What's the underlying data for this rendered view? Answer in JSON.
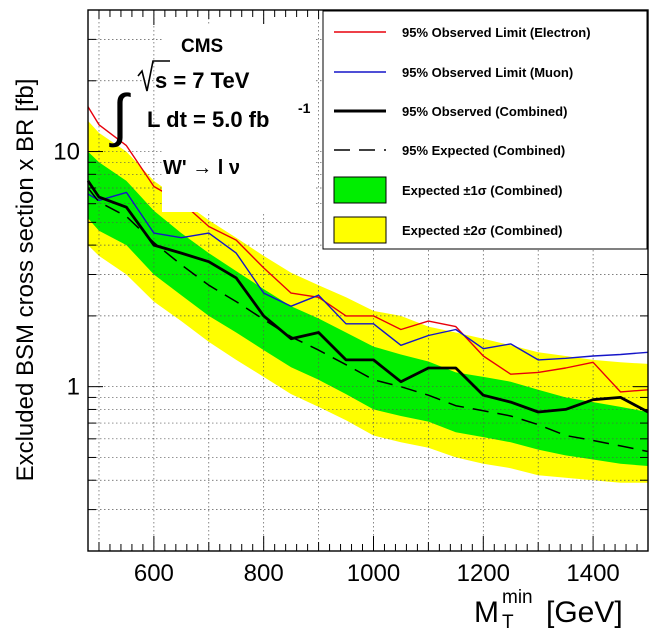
{
  "chart_data": {
    "type": "line",
    "xlabel": "M",
    "xlabel_sup": "min",
    "xlabel_sub": "T",
    "xlabel_unit": "[GeV]",
    "ylabel": "Excluded BSM cross section x BR [fb]",
    "xlim": [
      480,
      1500
    ],
    "ylim": [
      0.2,
      40
    ],
    "yscale": "log",
    "grid": true,
    "legend_position": "top-right",
    "x_ticks": [
      600,
      800,
      1000,
      1200,
      1400
    ],
    "y_ticks": [
      1,
      10
    ],
    "x": [
      480,
      500,
      550,
      600,
      650,
      700,
      750,
      800,
      850,
      900,
      950,
      1000,
      1050,
      1100,
      1150,
      1200,
      1250,
      1300,
      1350,
      1400,
      1450,
      1500
    ],
    "series": [
      {
        "name": "95% Observed Limit (Electron)",
        "style": "line",
        "color": "#e8000b",
        "values": [
          15.5,
          13.0,
          10.6,
          7.1,
          6.1,
          4.8,
          4.2,
          3.2,
          2.5,
          2.4,
          2.0,
          2.0,
          1.75,
          1.9,
          1.8,
          1.35,
          1.13,
          1.15,
          1.2,
          1.27,
          0.95,
          0.97
        ]
      },
      {
        "name": "95% Observed Limit (Muon)",
        "style": "line",
        "color": "#1515c8",
        "values": [
          6.6,
          6.2,
          6.7,
          4.5,
          4.3,
          4.5,
          3.7,
          2.5,
          2.2,
          2.45,
          1.85,
          1.85,
          1.5,
          1.65,
          1.75,
          1.45,
          1.52,
          1.3,
          1.32,
          1.35,
          1.37,
          1.4
        ]
      },
      {
        "name": "95% Observed (Combined)",
        "style": "line-thick",
        "color": "#000000",
        "values": [
          7.5,
          6.4,
          5.8,
          4.0,
          3.7,
          3.4,
          2.9,
          2.0,
          1.6,
          1.7,
          1.3,
          1.3,
          1.05,
          1.2,
          1.2,
          0.92,
          0.86,
          0.78,
          0.8,
          0.88,
          0.9,
          0.78
        ]
      },
      {
        "name": "95% Expected (Combined)",
        "style": "dashed",
        "color": "#000000",
        "values": [
          7.0,
          6.1,
          5.3,
          4.1,
          3.3,
          2.7,
          2.3,
          1.93,
          1.63,
          1.43,
          1.24,
          1.07,
          1.0,
          0.92,
          0.83,
          0.79,
          0.75,
          0.69,
          0.62,
          0.59,
          0.56,
          0.53
        ]
      }
    ],
    "bands": [
      {
        "name": "Expected ±2σ (Combined)",
        "color": "#ffff00",
        "lower": [
          4.0,
          3.6,
          3.0,
          2.3,
          1.9,
          1.55,
          1.3,
          1.1,
          0.93,
          0.82,
          0.72,
          0.62,
          0.58,
          0.55,
          0.5,
          0.47,
          0.45,
          0.42,
          0.41,
          0.4,
          0.39,
          0.39
        ],
        "upper": [
          13.5,
          12.0,
          10.0,
          7.5,
          6.2,
          5.1,
          4.3,
          3.6,
          3.05,
          2.7,
          2.4,
          2.1,
          2.0,
          1.8,
          1.7,
          1.6,
          1.5,
          1.4,
          1.35,
          1.3,
          1.27,
          1.25
        ]
      },
      {
        "name": "Expected ±1σ (Combined)",
        "color": "#00ee00",
        "lower": [
          5.2,
          4.6,
          4.0,
          3.0,
          2.45,
          2.0,
          1.7,
          1.43,
          1.21,
          1.07,
          0.93,
          0.8,
          0.75,
          0.71,
          0.64,
          0.61,
          0.58,
          0.54,
          0.51,
          0.49,
          0.47,
          0.46
        ],
        "upper": [
          10.0,
          9.0,
          7.5,
          5.6,
          4.5,
          3.7,
          3.1,
          2.6,
          2.2,
          1.95,
          1.7,
          1.48,
          1.37,
          1.28,
          1.15,
          1.1,
          1.05,
          0.97,
          0.9,
          0.86,
          0.82,
          0.78
        ]
      }
    ],
    "legend": [
      {
        "label": "95% Observed Limit (Electron)",
        "kind": "line",
        "color": "#e8000b"
      },
      {
        "label": "95% Observed Limit (Muon)",
        "kind": "line",
        "color": "#1515c8"
      },
      {
        "label": "95% Observed (Combined)",
        "kind": "line-thick",
        "color": "#000000"
      },
      {
        "label": "95% Expected (Combined)",
        "kind": "dashed",
        "color": "#000000"
      },
      {
        "label": "Expected ±1σ (Combined)",
        "kind": "box",
        "color": "#00ee00"
      },
      {
        "label": "Expected ±2σ (Combined)",
        "kind": "box",
        "color": "#ffff00"
      }
    ],
    "annotations": {
      "experiment": "CMS",
      "energy": "s = 7 TeV",
      "lumi": "L dt = 5.0 fb",
      "lumi_sup": "-1",
      "process": "W' → l ν"
    }
  }
}
